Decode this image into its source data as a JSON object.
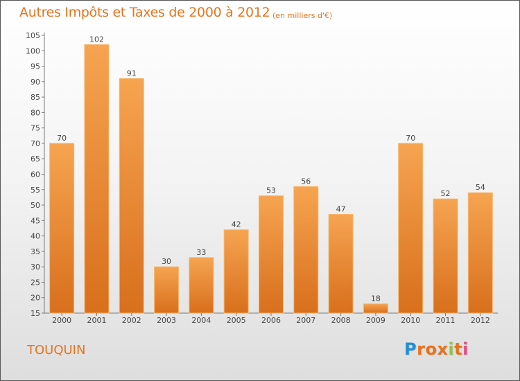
{
  "header": {
    "title": "Autres Impôts et Taxes de 2000 à 2012",
    "subtitle": "(en milliers d'€)"
  },
  "footer": {
    "commune": "TOUQUIN",
    "logo_letters": [
      "P",
      "r",
      "o",
      "x",
      "i",
      "t",
      "i"
    ],
    "logo_colors": [
      "#1f8fd6",
      "#e8731c",
      "#e8731c",
      "#e8731c",
      "#8dc63f",
      "#e8731c",
      "#e84c8a"
    ]
  },
  "colors": {
    "bar_light": "#f6a451",
    "bar_dark": "#d86f1c",
    "accent": "#e8731c"
  },
  "chart_data": {
    "type": "bar",
    "title": "Autres Impôts et Taxes de 2000 à 2012",
    "subtitle": "(en milliers d'€)",
    "categories": [
      "2000",
      "2001",
      "2002",
      "2003",
      "2004",
      "2005",
      "2006",
      "2007",
      "2008",
      "2009",
      "2010",
      "2011",
      "2012"
    ],
    "values": [
      70,
      102,
      91,
      30,
      33,
      42,
      53,
      56,
      47,
      18,
      70,
      52,
      54
    ],
    "ylim": [
      15,
      105
    ],
    "yticks": [
      15,
      20,
      25,
      30,
      35,
      40,
      45,
      50,
      55,
      60,
      65,
      70,
      75,
      80,
      85,
      90,
      95,
      100,
      105
    ],
    "grid": false,
    "xlabel": "",
    "ylabel": ""
  }
}
